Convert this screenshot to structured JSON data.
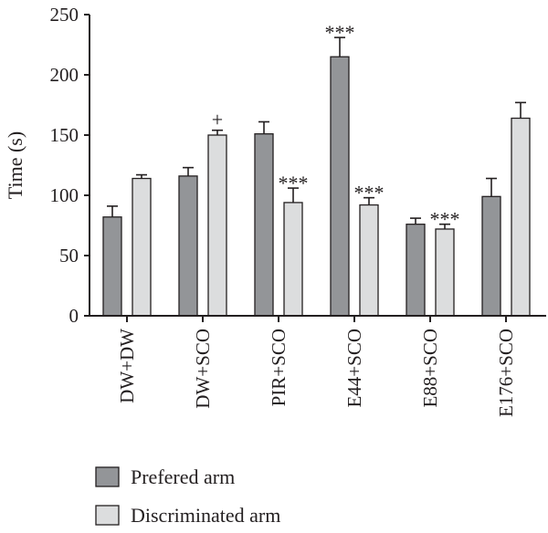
{
  "chart_data": {
    "type": "bar",
    "title": "",
    "xlabel": "",
    "ylabel": "Time (s)",
    "ylim": [
      0,
      250
    ],
    "yticks": [
      0,
      50,
      100,
      150,
      200,
      250
    ],
    "categories": [
      "DW+DW",
      "DW+SCO",
      "PIR+SCO",
      "E44+SCO",
      "E88+SCO",
      "E176+SCO"
    ],
    "series": [
      {
        "name": "Prefered arm",
        "color": "#939598",
        "values": [
          82,
          116,
          151,
          215,
          76,
          99
        ],
        "errors": [
          9,
          7,
          10,
          16,
          5,
          15
        ],
        "annotations": [
          "",
          "",
          "",
          "***",
          "",
          ""
        ]
      },
      {
        "name": "Discriminated arm",
        "color": "#dcddde",
        "values": [
          114,
          150,
          94,
          92,
          72,
          164
        ],
        "errors": [
          3,
          4,
          12,
          6,
          4,
          13
        ],
        "annotations": [
          "",
          "+",
          "***",
          "***",
          "***",
          ""
        ]
      }
    ],
    "legend_position": "bottom-left",
    "grid": false
  }
}
